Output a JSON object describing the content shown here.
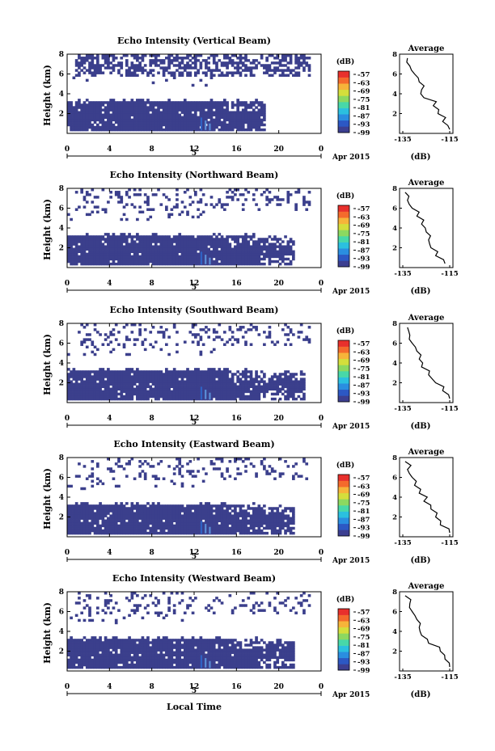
{
  "colors": {
    "background": "#ffffff",
    "echo": "#3b3f8c",
    "streak_blue": "#2f62c4",
    "streak_light": "#5a8ed8",
    "colorbar": [
      "#3c3f91",
      "#2c58c4",
      "#2a8ee0",
      "#2bc0df",
      "#48d8a8",
      "#8cd860",
      "#d4de3c",
      "#f6b43a",
      "#f46a2c",
      "#e8302c"
    ]
  },
  "shared": {
    "colorbar_unit": "(dB)",
    "colorbar_ticks": [
      "-57",
      "-63",
      "-69",
      "-75",
      "-81",
      "-87",
      "-93",
      "-99"
    ],
    "date_label": "Apr 2015",
    "day_label": "5",
    "y_label": "Height (km)",
    "x_ticks": [
      "0",
      "4",
      "8",
      "12",
      "16",
      "20",
      "0"
    ],
    "x_tick_values": [
      0,
      4,
      8,
      12,
      16,
      20,
      24
    ],
    "y_ticks": [
      "2",
      "4",
      "6",
      "8"
    ],
    "y_tick_values": [
      2,
      4,
      6,
      8
    ],
    "avg_title": "Average",
    "avg_x_ticks": [
      "-135",
      "-115"
    ],
    "avg_x_values": [
      -135,
      -115
    ],
    "avg_y_ticks": [
      "2",
      "4",
      "6",
      "8"
    ],
    "avg_xlabel": "(dB)",
    "x_axis_title": "Local Time"
  },
  "chart_data": [
    {
      "type": "heatmap",
      "title": "Echo Intensity (Vertical Beam)",
      "ylabel": "Height (km)",
      "xlim": [
        0,
        24
      ],
      "ylim": [
        0,
        8
      ],
      "echo_cutoff_hour": 18.6,
      "profile": {
        "heights": [
          0.4,
          1.2,
          2.0,
          2.8,
          3.6,
          4.4,
          5.2,
          6.0,
          6.8,
          7.6
        ],
        "values": [
          -115,
          -118,
          -120,
          -122,
          -126,
          -127,
          -128,
          -130,
          -132,
          -133
        ]
      }
    },
    {
      "type": "heatmap",
      "title": "Echo Intensity (Northward Beam)",
      "ylabel": "Height (km)",
      "xlim": [
        0,
        24
      ],
      "ylim": [
        0,
        8
      ],
      "echo_cutoff_hour": 21.5,
      "profile": {
        "heights": [
          0.4,
          1.2,
          2.0,
          2.8,
          3.6,
          4.4,
          5.2,
          6.0,
          6.8,
          7.6
        ],
        "values": [
          -117,
          -121,
          -123,
          -124,
          -125,
          -127,
          -129,
          -131,
          -133,
          -134
        ]
      }
    },
    {
      "type": "heatmap",
      "title": "Echo Intensity (Southward Beam)",
      "ylabel": "Height (km)",
      "xlim": [
        0,
        24
      ],
      "ylim": [
        0,
        8
      ],
      "echo_cutoff_hour": 22.5,
      "profile": {
        "heights": [
          0.4,
          1.2,
          2.0,
          2.8,
          3.6,
          4.4,
          5.2,
          6.0,
          6.8,
          7.6
        ],
        "values": [
          -115,
          -118,
          -121,
          -124,
          -127,
          -128,
          -129,
          -131,
          -132,
          -133
        ]
      }
    },
    {
      "type": "heatmap",
      "title": "Echo Intensity (Eastward Beam)",
      "ylabel": "Height (km)",
      "xlim": [
        0,
        24
      ],
      "ylim": [
        0,
        8
      ],
      "echo_cutoff_hour": 21.5,
      "profile": {
        "heights": [
          0.4,
          1.2,
          2.0,
          2.8,
          3.6,
          4.4,
          5.2,
          6.0,
          6.8,
          7.6
        ],
        "values": [
          -115,
          -119,
          -121,
          -123,
          -126,
          -128,
          -130,
          -131,
          -133,
          -134
        ]
      }
    },
    {
      "type": "heatmap",
      "title": "Echo Intensity (Westward Beam)",
      "ylabel": "Height (km)",
      "xlim": [
        0,
        24
      ],
      "ylim": [
        0,
        8
      ],
      "echo_cutoff_hour": 21.5,
      "profile": {
        "heights": [
          0.4,
          1.2,
          2.0,
          2.8,
          3.6,
          4.4,
          5.2,
          6.0,
          6.8,
          7.6
        ],
        "values": [
          -115,
          -117,
          -119,
          -124,
          -127,
          -128,
          -129,
          -131,
          -132,
          -134
        ]
      }
    }
  ]
}
